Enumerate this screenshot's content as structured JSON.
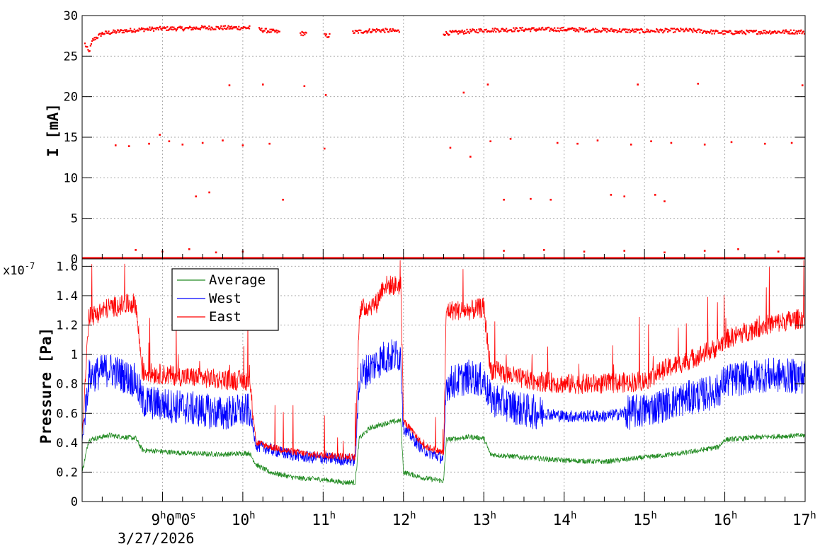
{
  "chart_data": [
    {
      "type": "scatter",
      "title": "",
      "xlabel": "",
      "ylabel": "I [mA]",
      "ylim": [
        0,
        30
      ],
      "xlim": [
        "08:00",
        "17:00"
      ],
      "y_ticks": [
        "0",
        "5",
        "10",
        "15",
        "20",
        "25",
        "30"
      ],
      "grid": true,
      "series": [
        {
          "name": "",
          "color": "#ff0000",
          "main_band": [
            {
              "x": "08:02",
              "y": 26.5
            },
            {
              "x": "08:05",
              "y": 25.5
            },
            {
              "x": "08:08",
              "y": 27.0
            },
            {
              "x": "08:15",
              "y": 27.8
            },
            {
              "x": "08:30",
              "y": 28.1
            },
            {
              "x": "08:45",
              "y": 28.3
            },
            {
              "x": "09:00",
              "y": 28.4
            },
            {
              "x": "09:15",
              "y": 28.4
            },
            {
              "x": "09:30",
              "y": 28.5
            },
            {
              "x": "09:45",
              "y": 28.5
            },
            {
              "x": "10:05",
              "y": 28.5
            },
            {
              "x": "10:15",
              "y": 28.2
            },
            {
              "x": "10:25",
              "y": 28.0
            },
            {
              "x": "10:45",
              "y": 27.8
            },
            {
              "x": "11:03",
              "y": 27.5
            },
            {
              "x": "11:25",
              "y": 28.0
            },
            {
              "x": "11:40",
              "y": 28.2
            },
            {
              "x": "11:55",
              "y": 28.1
            },
            {
              "x": "12:30",
              "y": 27.8
            },
            {
              "x": "12:45",
              "y": 28.0
            },
            {
              "x": "13:00",
              "y": 28.2
            },
            {
              "x": "13:30",
              "y": 28.3
            },
            {
              "x": "14:00",
              "y": 28.3
            },
            {
              "x": "14:30",
              "y": 28.2
            },
            {
              "x": "15:00",
              "y": 28.1
            },
            {
              "x": "15:30",
              "y": 28.2
            },
            {
              "x": "16:00",
              "y": 27.9
            },
            {
              "x": "16:30",
              "y": 28.0
            },
            {
              "x": "17:00",
              "y": 28.0
            }
          ],
          "zero_band": {
            "y": 0,
            "from": "08:00",
            "to": "17:00"
          },
          "outliers": [
            {
              "x": "08:25",
              "y": 14.0
            },
            {
              "x": "08:35",
              "y": 13.9
            },
            {
              "x": "08:50",
              "y": 14.2
            },
            {
              "x": "08:58",
              "y": 15.3
            },
            {
              "x": "09:05",
              "y": 14.5
            },
            {
              "x": "09:15",
              "y": 14.1
            },
            {
              "x": "09:25",
              "y": 7.7
            },
            {
              "x": "09:30",
              "y": 14.3
            },
            {
              "x": "09:35",
              "y": 8.2
            },
            {
              "x": "09:45",
              "y": 14.6
            },
            {
              "x": "09:50",
              "y": 21.4
            },
            {
              "x": "10:00",
              "y": 14.0
            },
            {
              "x": "10:15",
              "y": 21.5
            },
            {
              "x": "10:20",
              "y": 14.2
            },
            {
              "x": "10:30",
              "y": 7.3
            },
            {
              "x": "10:46",
              "y": 21.3
            },
            {
              "x": "11:02",
              "y": 20.2
            },
            {
              "x": "11:01",
              "y": 13.6
            },
            {
              "x": "12:35",
              "y": 13.7
            },
            {
              "x": "12:45",
              "y": 20.5
            },
            {
              "x": "12:50",
              "y": 12.6
            },
            {
              "x": "13:03",
              "y": 21.5
            },
            {
              "x": "13:05",
              "y": 14.5
            },
            {
              "x": "13:20",
              "y": 14.8
            },
            {
              "x": "13:15",
              "y": 7.3
            },
            {
              "x": "13:35",
              "y": 7.4
            },
            {
              "x": "13:50",
              "y": 7.3
            },
            {
              "x": "13:55",
              "y": 14.3
            },
            {
              "x": "14:10",
              "y": 14.2
            },
            {
              "x": "14:25",
              "y": 14.6
            },
            {
              "x": "14:35",
              "y": 7.9
            },
            {
              "x": "14:50",
              "y": 14.1
            },
            {
              "x": "14:45",
              "y": 7.7
            },
            {
              "x": "14:55",
              "y": 21.5
            },
            {
              "x": "15:05",
              "y": 14.5
            },
            {
              "x": "15:08",
              "y": 7.9
            },
            {
              "x": "15:15",
              "y": 7.1
            },
            {
              "x": "15:20",
              "y": 14.3
            },
            {
              "x": "15:40",
              "y": 21.6
            },
            {
              "x": "15:45",
              "y": 14.1
            },
            {
              "x": "16:05",
              "y": 14.4
            },
            {
              "x": "16:30",
              "y": 14.2
            },
            {
              "x": "16:50",
              "y": 14.3
            },
            {
              "x": "16:58",
              "y": 21.4
            },
            {
              "x": "08:40",
              "y": 1.1
            },
            {
              "x": "09:00",
              "y": 0.9
            },
            {
              "x": "09:20",
              "y": 1.2
            },
            {
              "x": "09:40",
              "y": 0.8
            },
            {
              "x": "10:00",
              "y": 0.9
            },
            {
              "x": "13:15",
              "y": 1.0
            },
            {
              "x": "13:45",
              "y": 1.1
            },
            {
              "x": "14:15",
              "y": 0.9
            },
            {
              "x": "14:45",
              "y": 1.0
            },
            {
              "x": "15:15",
              "y": 0.8
            },
            {
              "x": "15:45",
              "y": 1.0
            },
            {
              "x": "16:10",
              "y": 1.2
            },
            {
              "x": "16:40",
              "y": 0.9
            }
          ]
        }
      ]
    },
    {
      "type": "line",
      "title": "",
      "xlabel": "",
      "ylabel": "Pressure [Pa]",
      "y_multiplier": "x10",
      "y_multiplier_exp": "-7",
      "ylim": [
        0,
        1.65
      ],
      "y_ticks": [
        "0",
        "0.2",
        "0.4",
        "0.6",
        "0.8",
        "1",
        "1.2",
        "1.4",
        "1.6"
      ],
      "x_ticks": [
        {
          "label": "9",
          "unit": "h",
          "extra": "0m0s",
          "x": "09:00"
        },
        {
          "label": "10",
          "unit": "h",
          "x": "10:00"
        },
        {
          "label": "11",
          "unit": "h",
          "x": "11:00"
        },
        {
          "label": "12",
          "unit": "h",
          "x": "12:00"
        },
        {
          "label": "13",
          "unit": "h",
          "x": "13:00"
        },
        {
          "label": "14",
          "unit": "h",
          "x": "14:00"
        },
        {
          "label": "15",
          "unit": "h",
          "x": "15:00"
        },
        {
          "label": "16",
          "unit": "h",
          "x": "16:00"
        },
        {
          "label": "17",
          "unit": "h",
          "x": "17:00"
        }
      ],
      "date_label": "3/27/2026",
      "time_offset_parts": {
        "h": "h",
        "m": "m",
        "s": "s",
        "zero": "0"
      },
      "grid": true,
      "legend_position": "top-left",
      "series": [
        {
          "name": "Average",
          "color": "#228b22",
          "points": [
            {
              "x": "08:00",
              "y": 0.2
            },
            {
              "x": "08:05",
              "y": 0.42
            },
            {
              "x": "08:20",
              "y": 0.45
            },
            {
              "x": "08:40",
              "y": 0.43
            },
            {
              "x": "08:45",
              "y": 0.35
            },
            {
              "x": "09:15",
              "y": 0.33
            },
            {
              "x": "09:45",
              "y": 0.32
            },
            {
              "x": "10:05",
              "y": 0.33
            },
            {
              "x": "10:10",
              "y": 0.25
            },
            {
              "x": "10:20",
              "y": 0.2
            },
            {
              "x": "10:40",
              "y": 0.16
            },
            {
              "x": "11:00",
              "y": 0.15
            },
            {
              "x": "11:15",
              "y": 0.13
            },
            {
              "x": "11:24",
              "y": 0.13
            },
            {
              "x": "11:27",
              "y": 0.43
            },
            {
              "x": "11:35",
              "y": 0.5
            },
            {
              "x": "11:50",
              "y": 0.54
            },
            {
              "x": "11:58",
              "y": 0.55
            },
            {
              "x": "12:00",
              "y": 0.2
            },
            {
              "x": "12:15",
              "y": 0.16
            },
            {
              "x": "12:30",
              "y": 0.14
            },
            {
              "x": "12:32",
              "y": 0.42
            },
            {
              "x": "12:50",
              "y": 0.44
            },
            {
              "x": "13:00",
              "y": 0.43
            },
            {
              "x": "13:05",
              "y": 0.32
            },
            {
              "x": "13:30",
              "y": 0.3
            },
            {
              "x": "14:00",
              "y": 0.28
            },
            {
              "x": "14:30",
              "y": 0.27
            },
            {
              "x": "15:00",
              "y": 0.3
            },
            {
              "x": "15:30",
              "y": 0.33
            },
            {
              "x": "15:55",
              "y": 0.37
            },
            {
              "x": "16:00",
              "y": 0.42
            },
            {
              "x": "16:30",
              "y": 0.44
            },
            {
              "x": "17:00",
              "y": 0.45
            }
          ]
        },
        {
          "name": "West",
          "color": "#0000ff",
          "points": [
            {
              "x": "08:00",
              "y": 0.4
            },
            {
              "x": "08:05",
              "y": 0.85
            },
            {
              "x": "08:20",
              "y": 0.9
            },
            {
              "x": "08:40",
              "y": 0.82
            },
            {
              "x": "08:45",
              "y": 0.68
            },
            {
              "x": "09:15",
              "y": 0.64
            },
            {
              "x": "09:45",
              "y": 0.6
            },
            {
              "x": "10:05",
              "y": 0.62
            },
            {
              "x": "10:10",
              "y": 0.38
            },
            {
              "x": "10:30",
              "y": 0.33
            },
            {
              "x": "10:50",
              "y": 0.3
            },
            {
              "x": "11:10",
              "y": 0.29
            },
            {
              "x": "11:24",
              "y": 0.28
            },
            {
              "x": "11:27",
              "y": 0.85
            },
            {
              "x": "11:45",
              "y": 0.98
            },
            {
              "x": "11:58",
              "y": 1.0
            },
            {
              "x": "12:00",
              "y": 0.5
            },
            {
              "x": "12:15",
              "y": 0.35
            },
            {
              "x": "12:30",
              "y": 0.29
            },
            {
              "x": "12:32",
              "y": 0.8
            },
            {
              "x": "12:50",
              "y": 0.85
            },
            {
              "x": "13:00",
              "y": 0.82
            },
            {
              "x": "13:05",
              "y": 0.7
            },
            {
              "x": "13:30",
              "y": 0.62
            },
            {
              "x": "14:00",
              "y": 0.58
            },
            {
              "x": "14:30",
              "y": 0.58
            },
            {
              "x": "15:00",
              "y": 0.62
            },
            {
              "x": "15:30",
              "y": 0.7
            },
            {
              "x": "15:55",
              "y": 0.75
            },
            {
              "x": "16:00",
              "y": 0.82
            },
            {
              "x": "16:30",
              "y": 0.86
            },
            {
              "x": "17:00",
              "y": 0.85
            }
          ]
        },
        {
          "name": "East",
          "color": "#ff0000",
          "points": [
            {
              "x": "08:00",
              "y": 0.45
            },
            {
              "x": "08:05",
              "y": 1.25
            },
            {
              "x": "08:20",
              "y": 1.32
            },
            {
              "x": "08:40",
              "y": 1.35
            },
            {
              "x": "08:45",
              "y": 0.88
            },
            {
              "x": "09:15",
              "y": 0.85
            },
            {
              "x": "09:45",
              "y": 0.83
            },
            {
              "x": "10:05",
              "y": 0.82
            },
            {
              "x": "10:10",
              "y": 0.4
            },
            {
              "x": "10:30",
              "y": 0.35
            },
            {
              "x": "10:50",
              "y": 0.32
            },
            {
              "x": "11:10",
              "y": 0.31
            },
            {
              "x": "11:24",
              "y": 0.3
            },
            {
              "x": "11:27",
              "y": 1.3
            },
            {
              "x": "11:40",
              "y": 1.35
            },
            {
              "x": "11:45",
              "y": 1.47
            },
            {
              "x": "11:58",
              "y": 1.47
            },
            {
              "x": "12:00",
              "y": 0.55
            },
            {
              "x": "12:15",
              "y": 0.38
            },
            {
              "x": "12:30",
              "y": 0.33
            },
            {
              "x": "12:32",
              "y": 1.3
            },
            {
              "x": "12:50",
              "y": 1.3
            },
            {
              "x": "13:00",
              "y": 1.32
            },
            {
              "x": "13:05",
              "y": 0.9
            },
            {
              "x": "13:30",
              "y": 0.83
            },
            {
              "x": "14:00",
              "y": 0.8
            },
            {
              "x": "14:30",
              "y": 0.8
            },
            {
              "x": "15:00",
              "y": 0.82
            },
            {
              "x": "15:15",
              "y": 0.9
            },
            {
              "x": "15:30",
              "y": 0.95
            },
            {
              "x": "15:55",
              "y": 1.05
            },
            {
              "x": "16:00",
              "y": 1.1
            },
            {
              "x": "16:30",
              "y": 1.2
            },
            {
              "x": "17:00",
              "y": 1.25
            }
          ]
        }
      ]
    }
  ]
}
